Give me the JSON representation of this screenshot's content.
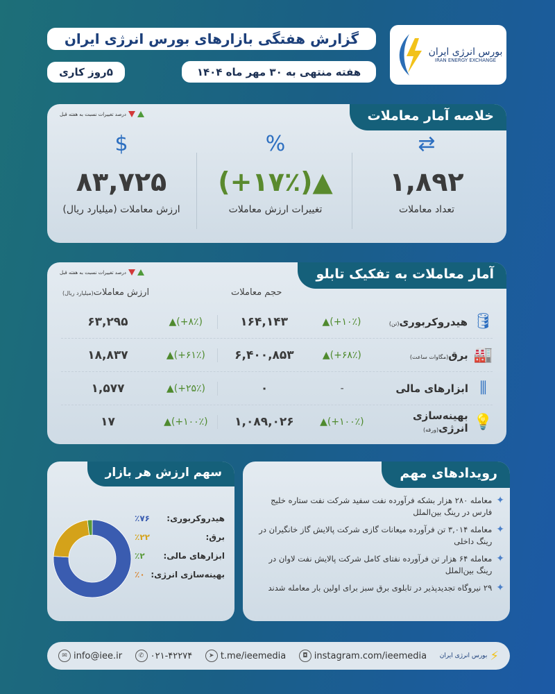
{
  "header": {
    "title": "گزارش هفتگی بازارهای بورس انرژی ایران",
    "date": "هفته منتهی به ۳۰ مهر ماه ۱۴۰۴",
    "workdays": "۵روز کاری",
    "logo_fa": "بورس انرژی ایران",
    "logo_en": "IRAN ENERGY EXCHANGE"
  },
  "legend_text": "درصد تغییرات نسبت به هفته قبل",
  "summary": {
    "title": "خلاصه آمار معاملات",
    "stats": [
      {
        "label": "تعداد معاملات",
        "value": "۱,۸۹۲",
        "icon": "handshake-icon"
      },
      {
        "label": "تغییرات ارزش معاملات",
        "value": "(+۱۷٪)▲",
        "icon": "percent-cycle-icon"
      },
      {
        "label": "ارزش معاملات (میلیارد ریال)",
        "value": "۸۳,۷۲۵",
        "icon": "money-bag-icon"
      }
    ]
  },
  "boards": {
    "title": "آمار معاملات به تفکیک تابلو",
    "col_volume": "حجم معاملات",
    "col_value": "ارزش معاملات",
    "col_value_unit": "(میلیارد  ریال)",
    "rows": [
      {
        "name": "هیدروکربوری",
        "unit": "(تن)",
        "vol_change": "▲(+۱۰٪)",
        "volume": "۱۶۴,۱۴۳",
        "val_change": "▲(+۸٪)",
        "value": "۶۳,۲۹۵",
        "icon": "oil-barrel-icon"
      },
      {
        "name": "برق",
        "unit": "(مگاوات  ساعت)",
        "vol_change": "▲(+۶۸٪)",
        "volume": "۶,۴۰۰,۸۵۳",
        "val_change": "▲(+۶۱٪)",
        "value": "۱۸,۸۳۷",
        "icon": "power-plant-icon"
      },
      {
        "name": "ابزارهای مالی",
        "unit": "",
        "vol_change": "-",
        "volume": "۰",
        "val_change": "▲(+۲۵٪)",
        "value": "۱,۵۷۷",
        "icon": "candlestick-icon"
      },
      {
        "name": "بهینه‌سازی انرژی",
        "unit": "(ورقه)",
        "vol_change": "▲(+۱۰۰٪)",
        "volume": "۱,۰۸۹,۰۲۶",
        "val_change": "▲(+۱۰۰٪)",
        "value": "۱۷",
        "icon": "lightbulb-icon"
      }
    ]
  },
  "events": {
    "title": "رویدادهای مهم",
    "items": [
      "معامله ۲۸۰ هزار بشکه فرآورده نفت سفید شرکت نفت ستاره خلیج فارس در رینگ بین‌الملل",
      "معامله ۳,۰۱۴ تن فرآورده میعانات گازی شرکت پالایش گاز خانگیران در رینگ داخلی",
      "معامله ۶۴ هزار تن فرآورده نفتای کامل شرکت پالایش نفت لاوان در رینگ بین‌الملل",
      "۲۹ نیروگاه تجدیدپذیر در تابلوی برق سبز برای اولین بار معامله شدند"
    ]
  },
  "chart_data": {
    "type": "pie",
    "title": "سهم ارزش هر بازار",
    "categories": [
      "هیدروکربوری:",
      "برق:",
      "ابزارهای مالی:",
      "بهینه‌سازی انرژی:"
    ],
    "values": [
      76,
      22,
      2,
      0
    ],
    "labels": [
      "٪۷۶",
      "٪۲۲",
      "٪۲",
      "٪۰"
    ],
    "colors": [
      "#3a5cb0",
      "#d4a21a",
      "#5a9a3a",
      "#d9822b"
    ],
    "donut": true
  },
  "footer": {
    "email": "info@iee.ir",
    "phone": "۰۲۱-۴۲۲۷۴",
    "telegram": "t.me/ieemedia",
    "instagram": "instagram.com/ieemedia"
  }
}
